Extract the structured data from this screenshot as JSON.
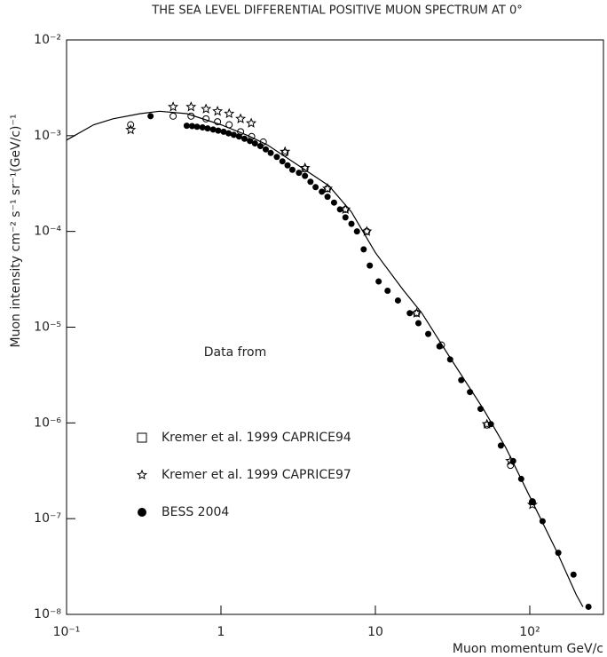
{
  "chart_data": {
    "type": "scatter",
    "title": "THE SEA LEVEL DIFFERENTIAL POSITIVE MUON SPECTRUM AT 0°",
    "x_label": "Muon momentum GeV/c",
    "y_label": "Muon intensity cm⁻² s⁻¹ sr⁻¹(GeV/c)⁻¹",
    "annotation": "Data from",
    "xscale": "log",
    "yscale": "log",
    "xlim": [
      0.1,
      300
    ],
    "ylim": [
      1e-08,
      0.01
    ],
    "xticks": [
      {
        "value": 0.1,
        "label": "10⁻¹"
      },
      1,
      10,
      {
        "value": 100,
        "label": "10²"
      }
    ],
    "yticks": [
      {
        "value": 1e-08,
        "label": "10⁻⁸"
      },
      {
        "value": 1e-07,
        "label": "10⁻⁷"
      },
      {
        "value": 1e-06,
        "label": "10⁻⁶"
      },
      {
        "value": 1e-05,
        "label": "10⁻⁵"
      },
      {
        "value": 0.0001,
        "label": "10⁻⁴"
      },
      {
        "value": 0.001,
        "label": "10⁻³"
      },
      {
        "value": 0.01,
        "label": "10⁻²"
      }
    ],
    "legend": "lower left",
    "series": [
      {
        "name": "Kremer et al. 1999 CAPRICE94",
        "color": "#000",
        "marker": "open-circle",
        "legend_marker": "square",
        "x": [
          0.26,
          0.49,
          0.64,
          0.8,
          0.95,
          1.13,
          1.34,
          1.58,
          1.88,
          2.6,
          3.5,
          4.9,
          6.4,
          8.8,
          18.5,
          26.8,
          52.8,
          75,
          104
        ],
        "values": [
          0.0013,
          0.0016,
          0.0016,
          0.0015,
          0.0014,
          0.0013,
          0.0011,
          0.00098,
          0.00086,
          0.00066,
          0.00045,
          0.00028,
          0.00017,
          0.0001,
          1.4e-05,
          6.5e-06,
          9.5e-07,
          3.6e-07,
          1.5e-07
        ]
      },
      {
        "name": "Kremer et al. 1999 CAPRICE97",
        "color": "#000",
        "marker": "star",
        "legend_marker": "star",
        "x": [
          0.26,
          0.49,
          0.64,
          0.8,
          0.95,
          1.13,
          1.34,
          1.57,
          2.6,
          3.5,
          4.9,
          6.4,
          8.8,
          18.5,
          52.8,
          75,
          104
        ],
        "values": [
          0.00115,
          0.002,
          0.002,
          0.0019,
          0.0018,
          0.0017,
          0.0015,
          0.00135,
          0.00068,
          0.00046,
          0.00028,
          0.00017,
          0.0001,
          1.4e-05,
          9.7e-07,
          4e-07,
          1.4e-07
        ]
      },
      {
        "name": "BESS 2004",
        "color": "#000",
        "marker": "filled-circle",
        "legend_marker": "filled-circle",
        "x": [
          0.35,
          0.6,
          0.65,
          0.7,
          0.76,
          0.82,
          0.89,
          0.96,
          1.04,
          1.12,
          1.21,
          1.31,
          1.42,
          1.54,
          1.66,
          1.8,
          1.95,
          2.1,
          2.3,
          2.5,
          2.7,
          2.9,
          3.2,
          3.5,
          3.8,
          4.1,
          4.5,
          4.9,
          5.4,
          5.9,
          6.4,
          7.0,
          7.6,
          8.4,
          9.2,
          10.5,
          12,
          14,
          16.7,
          19,
          22,
          26,
          30.5,
          36,
          41,
          48,
          56,
          65,
          78,
          88,
          104,
          121,
          153,
          192,
          240
        ],
        "values": [
          0.0016,
          0.00127,
          0.00126,
          0.00124,
          0.00122,
          0.00119,
          0.00116,
          0.00113,
          0.0011,
          0.00106,
          0.00102,
          0.00098,
          0.00093,
          0.00088,
          0.00083,
          0.00078,
          0.00072,
          0.00066,
          0.0006,
          0.00054,
          0.00049,
          0.00044,
          0.00041,
          0.00038,
          0.00033,
          0.00029,
          0.00026,
          0.00023,
          0.0002,
          0.00017,
          0.00014,
          0.00012,
          0.0001,
          6.5e-05,
          4.4e-05,
          3e-05,
          2.4e-05,
          1.9e-05,
          1.4e-05,
          1.1e-05,
          8.5e-06,
          6.3e-06,
          4.6e-06,
          2.8e-06,
          2.1e-06,
          1.4e-06,
          9.7e-07,
          5.8e-07,
          4e-07,
          2.6e-07,
          1.5e-07,
          9.4e-08,
          4.4e-08,
          2.6e-08,
          1.2e-08
        ]
      },
      {
        "color": "#000",
        "marker": "line",
        "x": [
          0.1,
          0.15,
          0.2,
          0.3,
          0.4,
          0.6,
          1,
          1.5,
          2,
          3,
          5,
          7,
          10,
          15,
          20,
          30,
          50,
          70,
          100,
          150,
          200,
          221
        ],
        "values": [
          0.0009,
          0.0013,
          0.0015,
          0.0017,
          0.0018,
          0.0017,
          0.0013,
          0.001,
          0.0008,
          0.00052,
          0.0003,
          0.00016,
          6e-05,
          2.5e-05,
          1.4e-05,
          5e-06,
          1.4e-06,
          5.5e-07,
          1.7e-07,
          4.5e-08,
          1.6e-08,
          1.2e-08
        ]
      }
    ]
  }
}
